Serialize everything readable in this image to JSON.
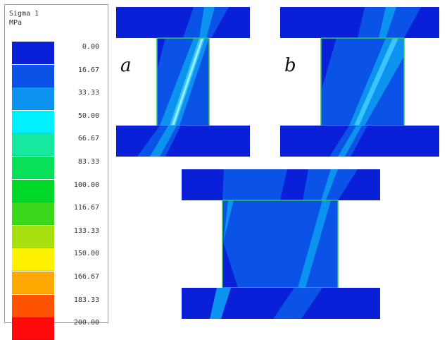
{
  "legend": {
    "title_line1": "Sigma 1",
    "title_line2": "MPa",
    "colors": [
      "#0a1fd8",
      "#0b52e6",
      "#0c93f0",
      "#00f0ff",
      "#16e8a0",
      "#08e05a",
      "#00d82a",
      "#3cd81a",
      "#a8e010",
      "#fff200",
      "#ffa800",
      "#ff5200",
      "#ff0a0a"
    ],
    "ticks": [
      "0.00",
      "16.67",
      "33.33",
      "50.00",
      "66.67",
      "83.33",
      "100.00",
      "116.67",
      "133.33",
      "150.00",
      "166.67",
      "183.33",
      "200.00"
    ]
  },
  "panels": {
    "a": {
      "label": "a"
    },
    "b": {
      "label": "b"
    },
    "c": {
      "label": ""
    }
  },
  "palette": {
    "deep_blue": "#0a1fd8",
    "mid_blue": "#0b52e6",
    "light_blue": "#0c93f0",
    "cyan": "#00f0ff",
    "edge_green": "#2fc84a"
  }
}
